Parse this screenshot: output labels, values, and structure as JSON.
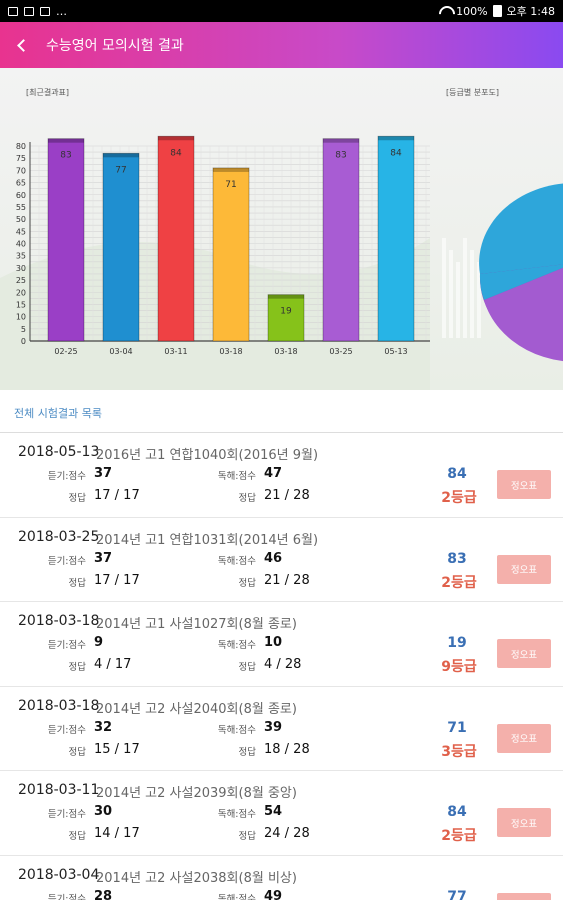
{
  "status_bar": {
    "time": "오후 1:48",
    "battery": "100%"
  },
  "app_bar": {
    "title": "수능영어 모의시험 결과"
  },
  "chart_titles": {
    "left": "[최근결과표]",
    "right": "[등급별 분포도]"
  },
  "chart_data": {
    "type": "bar",
    "title": "[최근결과표]",
    "categories": [
      "02-25",
      "03-04",
      "03-11",
      "03-18",
      "03-18",
      "03-25",
      "05-13"
    ],
    "values": [
      83,
      77,
      84,
      71,
      19,
      83,
      84
    ],
    "colors": [
      "#9a3fc6",
      "#1f8fd0",
      "#ef4144",
      "#fdb938",
      "#86c21a",
      "#a85cd3",
      "#27b4e6"
    ],
    "ylim": [
      0,
      80
    ],
    "yticks": [
      0,
      5,
      10,
      15,
      20,
      25,
      30,
      35,
      40,
      45,
      50,
      55,
      60,
      65,
      70,
      75,
      80
    ],
    "grid": true
  },
  "list_title": "전체 시험결과 목록",
  "labels": {
    "listening": "듣기:점수",
    "reading": "독해:점수",
    "correct": "정답",
    "answer_button": "정오표"
  },
  "results": [
    {
      "date": "2018-05-13",
      "name": "2016년 고1 연합1040회(2016년 9월)",
      "listening_score": "37",
      "reading_score": "47",
      "listening_correct": "17 / 17",
      "reading_correct": "21 / 28",
      "total": "84",
      "grade": "2등급"
    },
    {
      "date": "2018-03-25",
      "name": "2014년 고1 연합1031회(2014년 6월)",
      "listening_score": "37",
      "reading_score": "46",
      "listening_correct": "17 / 17",
      "reading_correct": "21 / 28",
      "total": "83",
      "grade": "2등급"
    },
    {
      "date": "2018-03-18",
      "name": "2014년 고1 사설1027회(8월 종로)",
      "listening_score": "9",
      "reading_score": "10",
      "listening_correct": "4 / 17",
      "reading_correct": "4 / 28",
      "total": "19",
      "grade": "9등급"
    },
    {
      "date": "2018-03-18",
      "name": "2014년 고2 사설2040회(8월 종로)",
      "listening_score": "32",
      "reading_score": "39",
      "listening_correct": "15 / 17",
      "reading_correct": "18 / 28",
      "total": "71",
      "grade": "3등급"
    },
    {
      "date": "2018-03-11",
      "name": "2014년 고2 사설2039회(8월 중앙)",
      "listening_score": "30",
      "reading_score": "54",
      "listening_correct": "14 / 17",
      "reading_correct": "24 / 28",
      "total": "84",
      "grade": "2등급"
    },
    {
      "date": "2018-03-04",
      "name": "2014년 고2 사설2038회(8월 비상)",
      "listening_score": "28",
      "reading_score": "49",
      "listening_correct": "",
      "reading_correct": "",
      "total": "77",
      "grade": ""
    }
  ]
}
